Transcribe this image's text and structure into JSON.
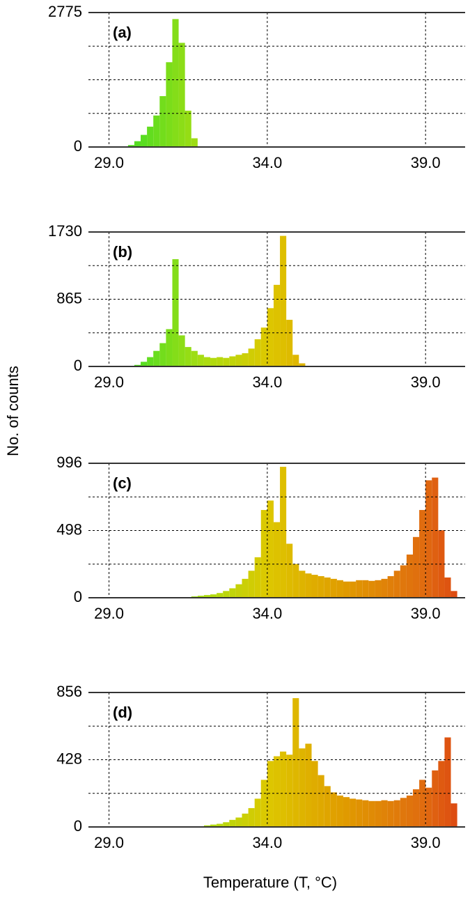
{
  "figure": {
    "ylabel": "No. of counts",
    "xlabel": "Temperature (T, °C)"
  },
  "chart_data": [
    {
      "type": "histogram",
      "title": "(a)",
      "bins": [
        29.6,
        29.8,
        30.0,
        30.2,
        30.4,
        30.6,
        30.8,
        31.0,
        31.2,
        31.4,
        31.6,
        31.8
      ],
      "values": [
        40,
        120,
        250,
        420,
        650,
        1050,
        1750,
        2640,
        2150,
        750,
        180
      ],
      "xlim": [
        28.35,
        40.25
      ],
      "xticks": [
        {
          "value": 29,
          "label": "29.0"
        },
        {
          "value": 34,
          "label": "34.0"
        },
        {
          "value": 39,
          "label": "39.0"
        }
      ],
      "ylim": [
        0,
        2775
      ],
      "yticks": [
        0,
        2775
      ],
      "ygrid": [
        693.75,
        1387.5,
        2081.25
      ],
      "grid": true,
      "colormap": [
        {
          "value": 30,
          "color": "#55dd22"
        },
        {
          "value": 32,
          "color": "#aadd11"
        },
        {
          "value": 34,
          "color": "#ddc800"
        },
        {
          "value": 36.5,
          "color": "#e09a00"
        },
        {
          "value": 39,
          "color": "#e06a10"
        },
        {
          "value": 40,
          "color": "#dd4a12"
        }
      ]
    },
    {
      "type": "histogram",
      "title": "(b)",
      "bins": [
        29.8,
        30.0,
        30.2,
        30.4,
        30.6,
        30.8,
        31.0,
        31.2,
        31.4,
        31.6,
        31.8,
        32.0,
        32.2,
        32.4,
        32.6,
        32.8,
        33.0,
        33.2,
        33.4,
        33.6,
        33.8,
        34.0,
        34.2,
        34.4,
        34.6,
        34.8,
        35.0,
        35.2
      ],
      "values": [
        20,
        60,
        120,
        200,
        300,
        480,
        1380,
        400,
        250,
        200,
        150,
        120,
        110,
        120,
        110,
        130,
        150,
        170,
        230,
        350,
        500,
        750,
        1050,
        1680,
        600,
        150,
        40
      ],
      "xlim": [
        28.35,
        40.25
      ],
      "xticks": [
        {
          "value": 29,
          "label": "29.0"
        },
        {
          "value": 34,
          "label": "34.0"
        },
        {
          "value": 39,
          "label": "39.0"
        }
      ],
      "ylim": [
        0,
        1730
      ],
      "yticks": [
        0,
        865,
        1730
      ],
      "ygrid": [
        432.5,
        1297.5
      ],
      "grid": true,
      "colormap": [
        {
          "value": 30,
          "color": "#55dd22"
        },
        {
          "value": 32,
          "color": "#aadd11"
        },
        {
          "value": 34,
          "color": "#ddc800"
        },
        {
          "value": 36.5,
          "color": "#e09a00"
        },
        {
          "value": 39,
          "color": "#e06a10"
        },
        {
          "value": 40,
          "color": "#dd4a12"
        }
      ]
    },
    {
      "type": "histogram",
      "title": "(c)",
      "bins": [
        31.6,
        31.8,
        32.0,
        32.2,
        32.4,
        32.6,
        32.8,
        33.0,
        33.2,
        33.4,
        33.6,
        33.8,
        34.0,
        34.2,
        34.4,
        34.6,
        34.8,
        35.0,
        35.2,
        35.4,
        35.6,
        35.8,
        36.0,
        36.2,
        36.4,
        36.6,
        36.8,
        37.0,
        37.2,
        37.4,
        37.6,
        37.8,
        38.0,
        38.2,
        38.4,
        38.6,
        38.8,
        39.0,
        39.2,
        39.4,
        39.6,
        39.8,
        40.0
      ],
      "values": [
        10,
        15,
        20,
        25,
        35,
        50,
        70,
        100,
        140,
        200,
        300,
        650,
        720,
        560,
        970,
        400,
        250,
        200,
        180,
        170,
        160,
        150,
        140,
        130,
        120,
        120,
        130,
        130,
        125,
        130,
        140,
        160,
        200,
        240,
        320,
        450,
        650,
        870,
        890,
        500,
        150,
        50
      ],
      "xlim": [
        28.35,
        40.25
      ],
      "xticks": [
        {
          "value": 29,
          "label": "29.0"
        },
        {
          "value": 34,
          "label": "34.0"
        },
        {
          "value": 39,
          "label": "39.0"
        }
      ],
      "ylim": [
        0,
        996
      ],
      "yticks": [
        0,
        498,
        996
      ],
      "ygrid": [
        249,
        747
      ],
      "grid": true,
      "colormap": [
        {
          "value": 30,
          "color": "#55dd22"
        },
        {
          "value": 32,
          "color": "#aadd11"
        },
        {
          "value": 34,
          "color": "#ddc800"
        },
        {
          "value": 36.5,
          "color": "#e09a00"
        },
        {
          "value": 39,
          "color": "#e06a10"
        },
        {
          "value": 40,
          "color": "#dd4a12"
        }
      ]
    },
    {
      "type": "histogram",
      "title": "(d)",
      "bins": [
        32.0,
        32.2,
        32.4,
        32.6,
        32.8,
        33.0,
        33.2,
        33.4,
        33.6,
        33.8,
        34.0,
        34.2,
        34.4,
        34.6,
        34.8,
        35.0,
        35.2,
        35.4,
        35.6,
        35.8,
        36.0,
        36.2,
        36.4,
        36.6,
        36.8,
        37.0,
        37.2,
        37.4,
        37.6,
        37.8,
        38.0,
        38.2,
        38.4,
        38.6,
        38.8,
        39.0,
        39.2,
        39.4,
        39.6,
        39.8,
        40.0
      ],
      "values": [
        10,
        15,
        20,
        30,
        45,
        60,
        85,
        120,
        180,
        300,
        420,
        450,
        480,
        460,
        820,
        500,
        530,
        420,
        330,
        260,
        220,
        200,
        190,
        180,
        175,
        170,
        165,
        165,
        170,
        165,
        170,
        185,
        200,
        240,
        300,
        250,
        360,
        420,
        570,
        150
      ],
      "xlim": [
        28.35,
        40.25
      ],
      "xticks": [
        {
          "value": 29,
          "label": "29.0"
        },
        {
          "value": 34,
          "label": "34.0"
        },
        {
          "value": 39,
          "label": "39.0"
        }
      ],
      "ylim": [
        0,
        856
      ],
      "yticks": [
        0,
        428,
        856
      ],
      "ygrid": [
        214,
        642
      ],
      "grid": true,
      "colormap": [
        {
          "value": 30,
          "color": "#55dd22"
        },
        {
          "value": 32,
          "color": "#aadd11"
        },
        {
          "value": 34,
          "color": "#ddc800"
        },
        {
          "value": 36.5,
          "color": "#e09a00"
        },
        {
          "value": 39,
          "color": "#e06a10"
        },
        {
          "value": 40,
          "color": "#dd4a12"
        }
      ]
    }
  ]
}
